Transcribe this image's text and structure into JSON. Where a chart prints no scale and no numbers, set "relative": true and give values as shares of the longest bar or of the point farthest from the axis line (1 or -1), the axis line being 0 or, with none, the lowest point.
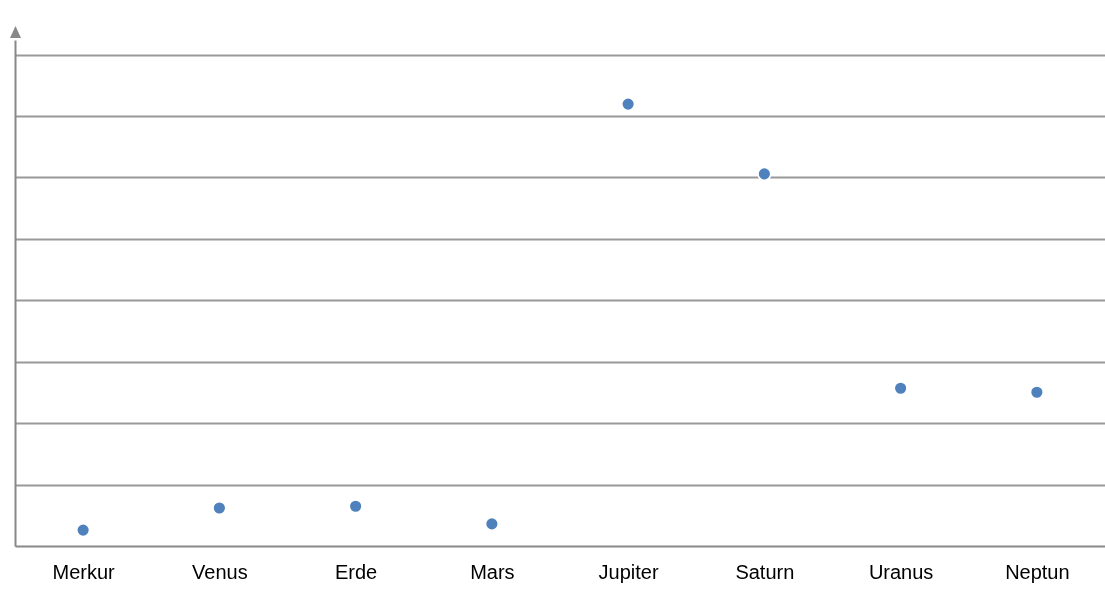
{
  "chart_data": {
    "type": "scatter",
    "relative": true,
    "grid": "y",
    "marker": "circle",
    "categories": [
      "Merkur",
      "Venus",
      "Erde",
      "Mars",
      "Jupiter",
      "Saturn",
      "Uranus",
      "Neptun"
    ],
    "series": [
      {
        "color": "#4f81bd",
        "values": [
          0.036,
          0.086,
          0.09,
          0.05,
          1,
          0.842,
          0.357,
          0.348
        ]
      }
    ]
  }
}
